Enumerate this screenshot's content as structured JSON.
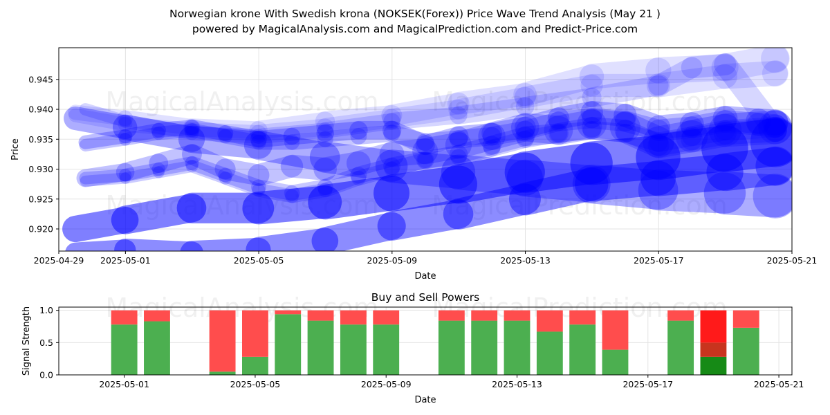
{
  "page": {
    "title_line1": "Norwegian krone With Swedish krona (NOKSEK(Forex)) Price Wave Trend Analysis (May 21 )",
    "title_line2": "powered by MagicalAnalysis.com and MagicalPrediction.com and Predict-Price.com",
    "watermarks": [
      "MagicalAnalysis.com",
      "MagicalPrediction.com"
    ]
  },
  "chart_data": [
    {
      "type": "line",
      "title": "",
      "xlabel": "Date",
      "ylabel": "Price",
      "x_range_days": [
        -2,
        20
      ],
      "ylim": [
        0.9163,
        0.9503
      ],
      "x_ticks": [
        {
          "day": -2,
          "label": "2025-04-29"
        },
        {
          "day": 0,
          "label": "2025-05-01"
        },
        {
          "day": 4,
          "label": "2025-05-05"
        },
        {
          "day": 8,
          "label": "2025-05-09"
        },
        {
          "day": 12,
          "label": "2025-05-13"
        },
        {
          "day": 16,
          "label": "2025-05-17"
        },
        {
          "day": 20,
          "label": "2025-05-21"
        }
      ],
      "y_ticks": [
        {
          "value": 0.92,
          "label": "0.920"
        },
        {
          "value": 0.925,
          "label": "0.925"
        },
        {
          "value": 0.93,
          "label": "0.930"
        },
        {
          "value": 0.935,
          "label": "0.935"
        },
        {
          "value": 0.94,
          "label": "0.940"
        },
        {
          "value": 0.945,
          "label": "0.945"
        }
      ],
      "grid": true,
      "color": "#0000ff",
      "series": [
        {
          "name": "wave-1",
          "x": [
            -1.5,
            0,
            2,
            4,
            6,
            8,
            10,
            12,
            14,
            16,
            18,
            19.5
          ],
          "y": [
            0.9395,
            0.9385,
            0.937,
            0.9365,
            0.938,
            0.939,
            0.941,
            0.9425,
            0.9455,
            0.9465,
            0.947,
            0.9485
          ],
          "opacity": 0.12
        },
        {
          "name": "wave-2",
          "x": [
            -1.5,
            0,
            2,
            4,
            6,
            8,
            10,
            12,
            14,
            16,
            18,
            19.5
          ],
          "y": [
            0.939,
            0.9375,
            0.9365,
            0.936,
            0.937,
            0.9385,
            0.94,
            0.942,
            0.944,
            0.944,
            0.9455,
            0.946
          ],
          "opacity": 0.12
        },
        {
          "name": "wave-3",
          "x": [
            -1.2,
            0,
            2,
            4,
            6,
            8,
            10,
            12,
            14,
            16,
            17,
            18,
            19.5
          ],
          "y": [
            0.94,
            0.938,
            0.936,
            0.9355,
            0.9365,
            0.938,
            0.939,
            0.9405,
            0.942,
            0.944,
            0.947,
            0.9475,
            0.9365
          ],
          "opacity": 0.16
        },
        {
          "name": "wave-4",
          "x": [
            -1.5,
            0,
            2,
            4,
            6,
            8,
            10,
            12,
            14,
            16,
            18,
            19.5
          ],
          "y": [
            0.9385,
            0.937,
            0.935,
            0.934,
            0.932,
            0.9305,
            0.9295,
            0.9285,
            0.9275,
            0.9265,
            0.926,
            0.9255
          ],
          "opacity": 0.32
        },
        {
          "name": "wave-5",
          "x": [
            -1.2,
            0,
            1,
            2,
            3,
            4,
            5,
            6,
            7,
            8,
            9,
            10,
            11,
            12,
            13,
            14,
            15,
            16,
            17,
            18,
            19,
            19.5
          ],
          "y": [
            0.9345,
            0.9355,
            0.9365,
            0.937,
            0.936,
            0.935,
            0.9355,
            0.936,
            0.9365,
            0.9365,
            0.934,
            0.9355,
            0.936,
            0.937,
            0.9385,
            0.9395,
            0.939,
            0.937,
            0.9375,
            0.9385,
            0.938,
            0.9378
          ],
          "opacity": 0.26
        },
        {
          "name": "wave-6",
          "x": [
            -1.2,
            0,
            1,
            2,
            3,
            4,
            5,
            6,
            7,
            8,
            9,
            10,
            11,
            12,
            13,
            14,
            15,
            16,
            17,
            18,
            19,
            19.5
          ],
          "y": [
            0.934,
            0.935,
            0.936,
            0.9365,
            0.9355,
            0.9345,
            0.9345,
            0.935,
            0.9355,
            0.936,
            0.9345,
            0.935,
            0.9355,
            0.9365,
            0.938,
            0.9385,
            0.938,
            0.9365,
            0.937,
            0.938,
            0.9375,
            0.9372
          ],
          "opacity": 0.22
        },
        {
          "name": "wave-7",
          "x": [
            -1.2,
            0,
            1,
            2,
            3,
            4,
            5,
            6,
            7,
            8,
            9,
            10,
            11,
            12,
            13,
            14,
            15,
            16,
            17,
            18,
            19.5
          ],
          "y": [
            0.9285,
            0.9295,
            0.931,
            0.9325,
            0.93,
            0.929,
            0.9305,
            0.93,
            0.931,
            0.9325,
            0.933,
            0.934,
            0.9355,
            0.937,
            0.9365,
            0.9375,
            0.937,
            0.9345,
            0.9355,
            0.9365,
            0.937
          ],
          "opacity": 0.24
        },
        {
          "name": "wave-8",
          "x": [
            -1.2,
            0,
            1,
            2,
            3,
            4,
            5,
            6,
            7,
            8,
            9,
            10,
            11,
            12,
            13,
            14,
            15,
            16,
            17,
            18,
            19.5
          ],
          "y": [
            0.9285,
            0.929,
            0.93,
            0.931,
            0.929,
            0.927,
            0.926,
            0.927,
            0.929,
            0.9305,
            0.9315,
            0.9325,
            0.934,
            0.9355,
            0.936,
            0.937,
            0.9365,
            0.934,
            0.935,
            0.936,
            0.9365
          ],
          "opacity": 0.22
        },
        {
          "name": "wave-9",
          "x": [
            -1.2,
            0,
            1,
            2,
            3,
            4,
            5,
            6,
            7,
            8,
            9,
            10,
            11,
            12,
            13,
            14,
            15,
            16,
            17,
            18,
            19.5
          ],
          "y": [
            0.928,
            0.9285,
            0.9295,
            0.9305,
            0.9285,
            0.9265,
            0.9255,
            0.9265,
            0.9285,
            0.93,
            0.9315,
            0.932,
            0.9335,
            0.935,
            0.936,
            0.9365,
            0.936,
            0.9345,
            0.9355,
            0.9365,
            0.937
          ],
          "opacity": 0.2
        },
        {
          "name": "wave-10",
          "x": [
            -1.5,
            0,
            2,
            4,
            6,
            8,
            10,
            12,
            14,
            16,
            18,
            19.5
          ],
          "y": [
            0.92,
            0.9215,
            0.9235,
            0.9235,
            0.9245,
            0.926,
            0.9275,
            0.9295,
            0.931,
            0.932,
            0.9335,
            0.9345
          ],
          "opacity": 0.5
        },
        {
          "name": "wave-11",
          "x": [
            -1.5,
            0,
            2,
            4,
            6,
            8,
            10,
            12,
            14,
            16,
            18,
            19.5
          ],
          "y": [
            0.916,
            0.9165,
            0.916,
            0.9165,
            0.918,
            0.9205,
            0.9225,
            0.925,
            0.9275,
            0.9285,
            0.9295,
            0.9305
          ],
          "opacity": 0.45
        }
      ]
    },
    {
      "type": "bar",
      "title": "Buy and Sell Powers",
      "xlabel": "Date",
      "ylabel": "Signal Strength",
      "x_range_days": [
        -2,
        20.4
      ],
      "ylim": [
        0,
        1.05
      ],
      "x_ticks": [
        {
          "day": 0,
          "label": "2025-05-01"
        },
        {
          "day": 4,
          "label": "2025-05-05"
        },
        {
          "day": 8,
          "label": "2025-05-09"
        },
        {
          "day": 12,
          "label": "2025-05-13"
        },
        {
          "day": 16,
          "label": "2025-05-17"
        },
        {
          "day": 20,
          "label": "2025-05-21"
        }
      ],
      "y_ticks": [
        {
          "value": 0.0,
          "label": "0.0"
        },
        {
          "value": 0.5,
          "label": "0.5"
        },
        {
          "value": 1.0,
          "label": "1.0"
        }
      ],
      "grid": true,
      "buy_color": "#4caf50",
      "sell_color": "#ff4d4d",
      "bars": [
        {
          "date": "2025-05-01",
          "day": 0,
          "buy": 0.78,
          "sell": 0.22
        },
        {
          "date": "2025-05-02",
          "day": 1,
          "buy": 0.83,
          "sell": 0.17
        },
        {
          "date": "2025-05-04",
          "day": 3,
          "buy": 0.05,
          "sell": 0.95
        },
        {
          "date": "2025-05-05",
          "day": 4,
          "buy": 0.28,
          "sell": 0.72
        },
        {
          "date": "2025-05-06",
          "day": 5,
          "buy": 0.94,
          "sell": 0.06
        },
        {
          "date": "2025-05-07",
          "day": 6,
          "buy": 0.84,
          "sell": 0.16
        },
        {
          "date": "2025-05-08",
          "day": 7,
          "buy": 0.78,
          "sell": 0.22
        },
        {
          "date": "2025-05-09",
          "day": 8,
          "buy": 0.78,
          "sell": 0.22
        },
        {
          "date": "2025-05-11",
          "day": 10,
          "buy": 0.84,
          "sell": 0.16
        },
        {
          "date": "2025-05-12",
          "day": 11,
          "buy": 0.84,
          "sell": 0.16
        },
        {
          "date": "2025-05-13",
          "day": 12,
          "buy": 0.84,
          "sell": 0.16
        },
        {
          "date": "2025-05-14",
          "day": 13,
          "buy": 0.67,
          "sell": 0.33
        },
        {
          "date": "2025-05-15",
          "day": 14,
          "buy": 0.78,
          "sell": 0.22
        },
        {
          "date": "2025-05-16",
          "day": 15,
          "buy": 0.39,
          "sell": 0.61
        },
        {
          "date": "2025-05-18",
          "day": 17,
          "buy": 0.84,
          "sell": 0.16
        },
        {
          "date": "2025-05-19",
          "day": 18,
          "buy": 0.28,
          "sell": 0.72,
          "mid": 0.5,
          "highlight": true
        },
        {
          "date": "2025-05-20",
          "day": 19,
          "buy": 0.73,
          "sell": 0.27
        }
      ]
    }
  ]
}
